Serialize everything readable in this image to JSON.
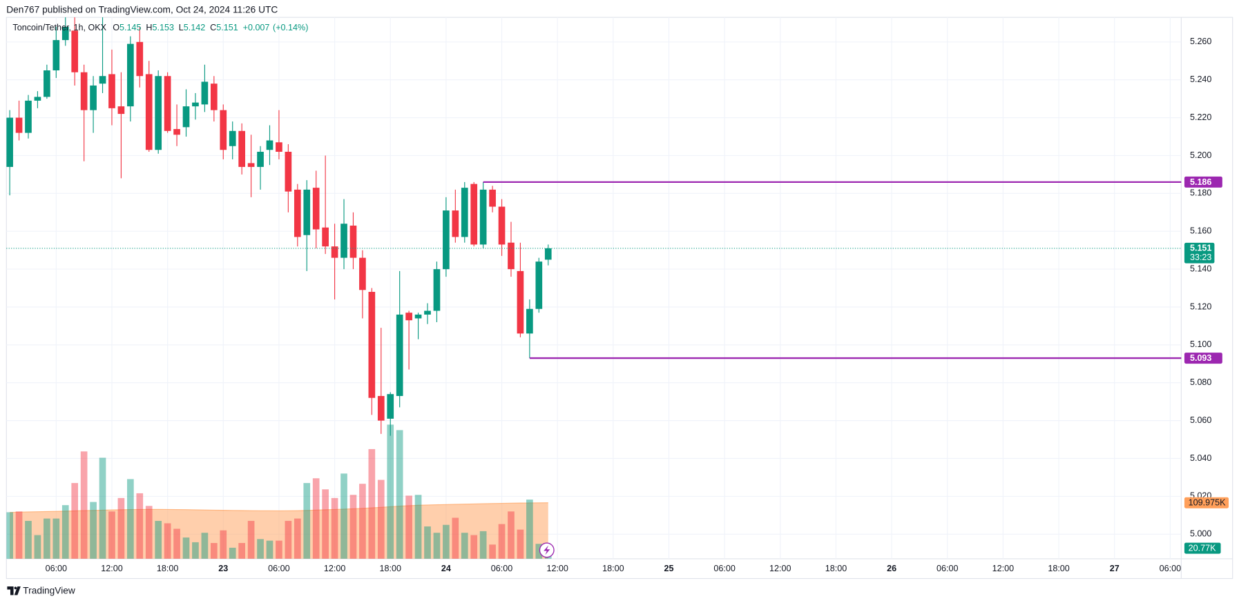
{
  "header": "Den767 published on TradingView.com, Oct 24, 2024 11:26 UTC",
  "footer": "TradingView",
  "chart_data": {
    "type": "candlestick",
    "symbol": "Toncoin/Tether, 1h, OKX",
    "ohlc_letters": [
      "O",
      "H",
      "L",
      "C"
    ],
    "change": "+0.007",
    "change_percent": "(+0.14%)",
    "countdown": "33:23",
    "colors": {
      "up": "#089981",
      "down": "#f23645",
      "level": "#9c27b0",
      "volume_ma": "#ff9f5a"
    },
    "grid": true,
    "x": [
      1,
      2,
      3,
      4,
      5,
      6,
      7,
      8,
      9,
      10,
      11,
      12,
      13,
      14,
      15,
      16,
      17,
      18,
      19,
      20,
      21,
      22,
      23,
      24,
      25,
      26,
      27,
      28,
      29,
      30,
      31,
      32,
      33,
      34,
      35,
      36,
      37,
      38,
      39,
      40,
      41,
      42,
      43,
      44,
      45,
      46,
      47,
      48,
      49,
      50,
      51,
      52,
      53,
      54,
      55,
      56,
      57,
      58,
      59
    ],
    "open": [
      5.194,
      5.22,
      5.212,
      5.229,
      5.231,
      5.245,
      5.261,
      5.266,
      5.244,
      5.224,
      5.238,
      5.243,
      5.226,
      5.226,
      5.26,
      5.243,
      5.203,
      5.242,
      5.214,
      5.215,
      5.226,
      5.227,
      5.238,
      5.224,
      5.205,
      5.213,
      5.196,
      5.194,
      5.203,
      5.207,
      5.202,
      5.182,
      5.158,
      5.183,
      5.162,
      5.152,
      5.146,
      5.163,
      5.146,
      5.128,
      5.073,
      5.061,
      5.073,
      5.117,
      5.114,
      5.116,
      5.118,
      5.14,
      5.171,
      5.157,
      5.185,
      5.153,
      5.182,
      5.173,
      5.154,
      5.139,
      5.106,
      5.119,
      5.145
    ],
    "high": [
      5.224,
      5.229,
      5.232,
      5.234,
      5.248,
      5.268,
      5.274,
      5.274,
      5.248,
      5.242,
      5.274,
      5.256,
      5.244,
      5.263,
      5.268,
      5.25,
      5.245,
      5.244,
      5.227,
      5.235,
      5.233,
      5.248,
      5.242,
      5.227,
      5.218,
      5.217,
      5.211,
      5.205,
      5.216,
      5.224,
      5.206,
      5.185,
      5.187,
      5.192,
      5.2,
      5.164,
      5.177,
      5.17,
      5.15,
      5.13,
      5.109,
      5.075,
      5.139,
      5.118,
      5.117,
      5.122,
      5.144,
      5.178,
      5.182,
      5.186,
      5.186,
      5.186,
      5.184,
      5.177,
      5.165,
      5.154,
      5.124,
      5.146,
      5.153
    ],
    "low": [
      5.179,
      5.208,
      5.209,
      5.225,
      5.23,
      5.241,
      5.258,
      5.237,
      5.197,
      5.212,
      5.233,
      5.216,
      5.188,
      5.218,
      5.236,
      5.202,
      5.201,
      5.212,
      5.205,
      5.21,
      5.219,
      5.223,
      5.218,
      5.198,
      5.198,
      5.19,
      5.178,
      5.182,
      5.195,
      5.198,
      5.17,
      5.152,
      5.139,
      5.151,
      5.148,
      5.124,
      5.14,
      5.14,
      5.114,
      5.063,
      5.053,
      5.052,
      5.067,
      5.087,
      5.103,
      5.111,
      5.112,
      5.136,
      5.154,
      5.154,
      5.152,
      5.151,
      5.17,
      5.147,
      5.136,
      5.104,
      5.093,
      5.117,
      5.142
    ],
    "close": [
      5.22,
      5.212,
      5.229,
      5.231,
      5.245,
      5.261,
      5.268,
      5.244,
      5.224,
      5.237,
      5.242,
      5.225,
      5.222,
      5.259,
      5.242,
      5.203,
      5.242,
      5.213,
      5.211,
      5.226,
      5.228,
      5.239,
      5.224,
      5.203,
      5.213,
      5.194,
      5.194,
      5.202,
      5.208,
      5.202,
      5.181,
      5.157,
      5.182,
      5.161,
      5.152,
      5.146,
      5.164,
      5.146,
      5.129,
      5.072,
      5.06,
      5.074,
      5.116,
      5.113,
      5.116,
      5.118,
      5.14,
      5.171,
      5.157,
      5.183,
      5.153,
      5.182,
      5.173,
      5.153,
      5.14,
      5.106,
      5.119,
      5.144,
      5.151
    ],
    "volume": {
      "values": [
        91400,
        92900,
        74400,
        46500,
        79000,
        79000,
        105300,
        148700,
        210700,
        111500,
        198300,
        92900,
        119300,
        156400,
        128600,
        103800,
        74400,
        69700,
        58900,
        41800,
        32500,
        51100,
        31000,
        55800,
        21700,
        31000,
        74400,
        38700,
        35600,
        35600,
        74400,
        79000,
        148700,
        158000,
        136300,
        119300,
        167300,
        125500,
        147200,
        215300,
        154900,
        263300,
        252500,
        123900,
        125500,
        63500,
        51100,
        66600,
        80500,
        51100,
        46500,
        54200,
        27900,
        68200,
        92900,
        57300,
        116200,
        29400,
        20770
      ],
      "last_label": "20.77K"
    },
    "volume_ma": {
      "values": [
        91000,
        91500,
        92000,
        92400,
        92800,
        93100,
        93500,
        94000,
        94600,
        95000,
        95500,
        95900,
        96300,
        96600,
        96800,
        96900,
        96900,
        96800,
        96600,
        96400,
        96100,
        95800,
        95500,
        95200,
        94900,
        94700,
        94500,
        94300,
        94200,
        94100,
        94200,
        94500,
        95000,
        95600,
        96200,
        96800,
        97500,
        98200,
        99000,
        100000,
        101000,
        102200,
        103400,
        104300,
        105000,
        105600,
        106100,
        106500,
        106900,
        107300,
        107700,
        108100,
        108500,
        108800,
        109100,
        109400,
        109600,
        109800,
        109975
      ],
      "last_label": "109.975K"
    },
    "levels": [
      {
        "value": 5.186,
        "from": 52
      },
      {
        "value": 5.093,
        "from": 57
      }
    ],
    "ylim": [
      4.987,
      5.273
    ],
    "yticks": [
      {
        "value": 5.0,
        "label": "5.000"
      },
      {
        "value": 5.02,
        "label": "5.020"
      },
      {
        "value": 5.04,
        "label": "5.040"
      },
      {
        "value": 5.06,
        "label": "5.060"
      },
      {
        "value": 5.08,
        "label": "5.080"
      },
      {
        "value": 5.1,
        "label": "5.100"
      },
      {
        "value": 5.12,
        "label": "5.120"
      },
      {
        "value": 5.14,
        "label": "5.140"
      },
      {
        "value": 5.16,
        "label": "5.160"
      },
      {
        "value": 5.18,
        "label": "5.180"
      },
      {
        "value": 5.2,
        "label": "5.200"
      },
      {
        "value": 5.22,
        "label": "5.220"
      },
      {
        "value": 5.24,
        "label": "5.240"
      },
      {
        "value": 5.26,
        "label": "5.260"
      }
    ],
    "xlim": [
      0.64,
      127.19
    ],
    "xticks": [
      {
        "value": 6,
        "label": "06:00"
      },
      {
        "value": 12,
        "label": "12:00"
      },
      {
        "value": 18,
        "label": "18:00"
      },
      {
        "value": 24,
        "label": "23"
      },
      {
        "value": 30,
        "label": "06:00"
      },
      {
        "value": 36,
        "label": "12:00"
      },
      {
        "value": 42,
        "label": "18:00"
      },
      {
        "value": 48,
        "label": "24"
      },
      {
        "value": 54,
        "label": "06:00"
      },
      {
        "value": 60,
        "label": "12:00"
      },
      {
        "value": 66,
        "label": "18:00"
      },
      {
        "value": 72,
        "label": "25"
      },
      {
        "value": 78,
        "label": "06:00"
      },
      {
        "value": 84,
        "label": "12:00"
      },
      {
        "value": 90,
        "label": "18:00"
      },
      {
        "value": 96,
        "label": "26"
      },
      {
        "value": 102,
        "label": "06:00"
      },
      {
        "value": 108,
        "label": "12:00"
      },
      {
        "value": 114,
        "label": "18:00"
      },
      {
        "value": 120,
        "label": "27"
      },
      {
        "value": 126,
        "label": "06:00"
      }
    ]
  }
}
